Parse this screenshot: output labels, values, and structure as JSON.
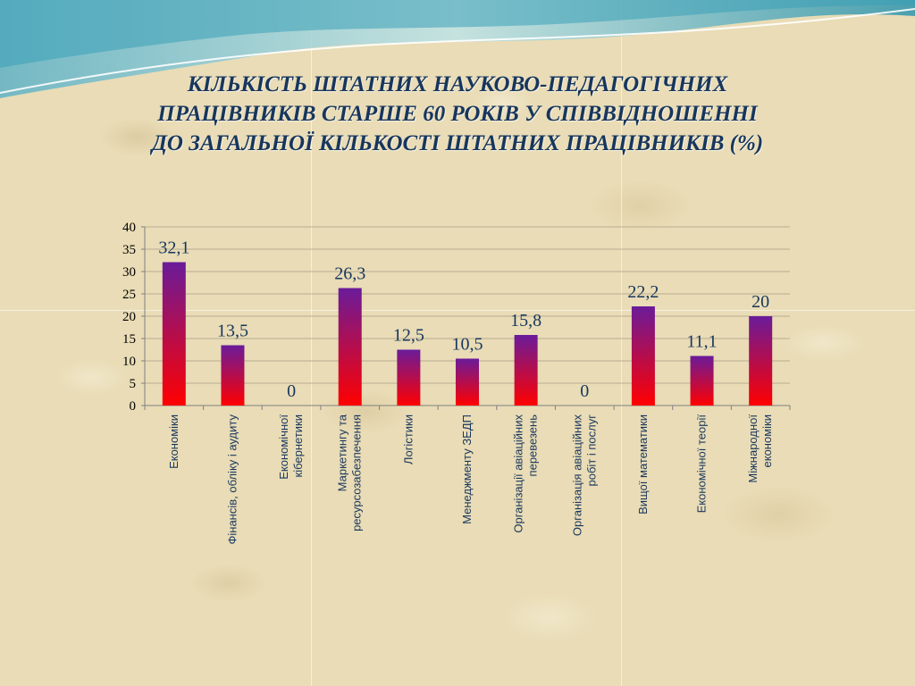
{
  "title": {
    "lines": [
      "КІЛЬКІСТЬ ШТАТНИХ НАУКОВО-ПЕДАГОГІЧНИХ",
      "ПРАЦІВНИКІВ СТАРШЕ 60 РОКІВ У СПІВВІДНОШЕННІ",
      "ДО ЗАГАЛЬНОЇ КІЛЬКОСТІ ШТАТНИХ ПРАЦІВНИКІВ (%)"
    ]
  },
  "colors": {
    "title": "#17365d",
    "bar_top": "#6a1b9a",
    "bar_bottom": "#ff0000",
    "data_label": "#17365d",
    "category_label": "#17365d",
    "gridline": "#b9ad93"
  },
  "chart_data": {
    "type": "bar",
    "categories": [
      [
        "Економіки"
      ],
      [
        "Фінансів, обліку і аудиту"
      ],
      [
        "Економічної",
        "кібернетики"
      ],
      [
        "Маркетингу та",
        "ресурсозабезпечення"
      ],
      [
        "Логістики"
      ],
      [
        "Менеджменту ЗЕДП"
      ],
      [
        "Організації авіаційних",
        "перевезень"
      ],
      [
        "Організація авіаційних",
        "робіт і послуг"
      ],
      [
        "Вищої математики"
      ],
      [
        "Економічної теорії"
      ],
      [
        "Міжнародної",
        "економіки"
      ]
    ],
    "values": [
      32.1,
      13.5,
      0,
      26.3,
      12.5,
      10.5,
      15.8,
      0,
      22.2,
      11.1,
      20
    ],
    "data_labels": [
      "32,1",
      "13,5",
      "0",
      "26,3",
      "12,5",
      "10,5",
      "15,8",
      "0",
      "22,2",
      "11,1",
      "20"
    ],
    "ylim": [
      0,
      40
    ],
    "yticks": [
      0,
      5,
      10,
      15,
      20,
      25,
      30,
      35,
      40
    ],
    "grid": true,
    "legend": "none"
  }
}
